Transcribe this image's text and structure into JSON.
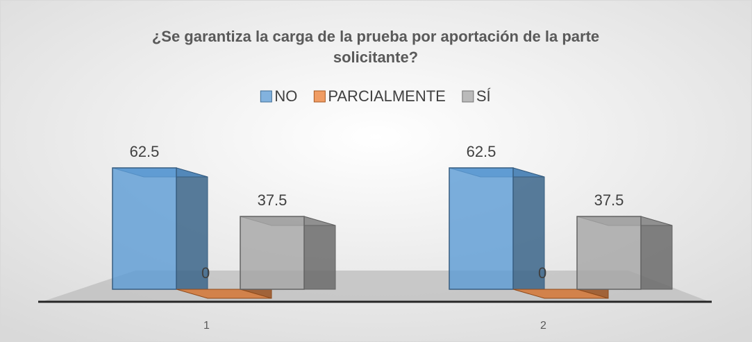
{
  "chart_data": {
    "type": "bar",
    "title_lines": [
      "¿Se garantiza la carga de la prueba por aportación de la parte",
      "solicitante?"
    ],
    "categories": [
      "1",
      "2"
    ],
    "series": [
      {
        "name": "NO",
        "color": "#5b9bd5",
        "values": [
          62.5,
          62.5
        ]
      },
      {
        "name": "PARCIALMENTE",
        "color": "#ed7d31",
        "values": [
          0,
          0
        ]
      },
      {
        "name": "SÍ",
        "color": "#a5a5a5",
        "values": [
          37.5,
          37.5
        ]
      }
    ],
    "legend": "top"
  }
}
